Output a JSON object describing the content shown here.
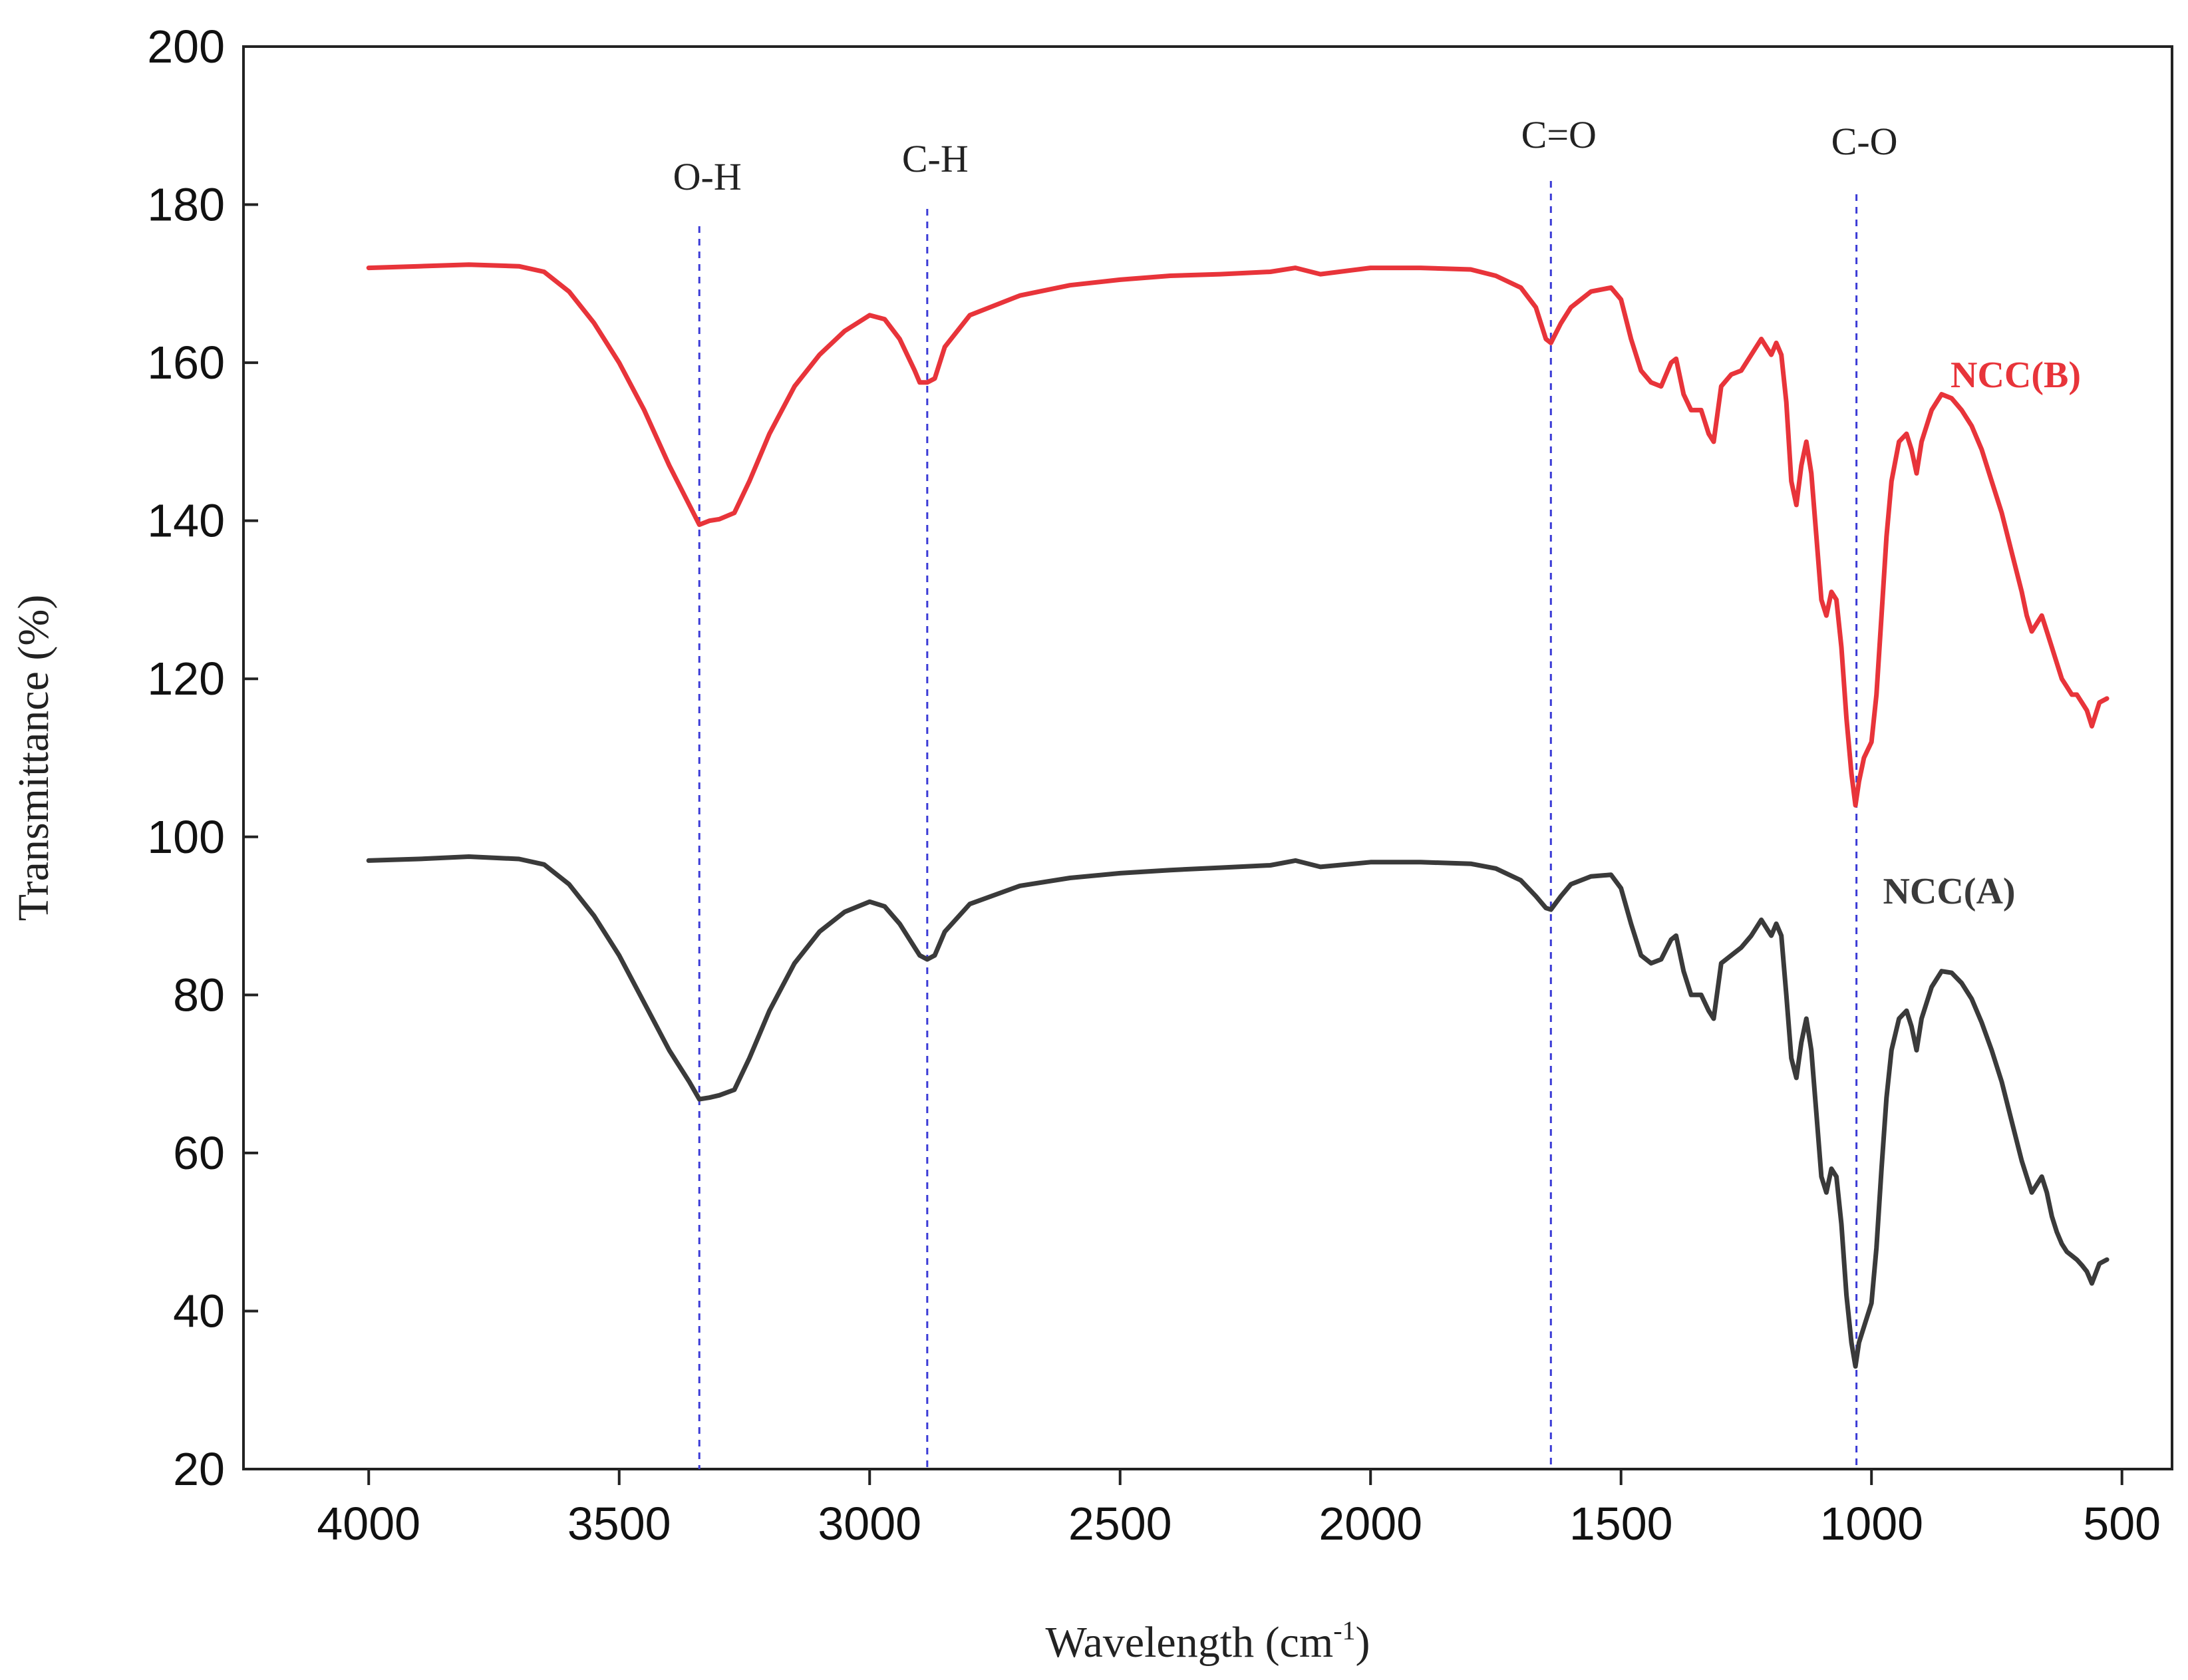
{
  "chart_data": {
    "type": "line",
    "title": "",
    "xlabel": "Wavelength (cm",
    "xlabel_sup": "-1",
    "xlabel_suffix": ")",
    "ylabel": "Transmittance (%)",
    "xlim": [
      4250,
      400
    ],
    "ylim": [
      20,
      200
    ],
    "x_reversed": true,
    "x_ticks": [
      4000,
      3500,
      3000,
      2500,
      2000,
      1500,
      1000,
      500
    ],
    "x_tick_labels": [
      "4000",
      "3500",
      "3000",
      "2500",
      "2000",
      "1500",
      "1000",
      "500"
    ],
    "y_ticks": [
      20,
      40,
      60,
      80,
      100,
      120,
      140,
      160,
      180,
      200
    ],
    "y_tick_labels": [
      "20",
      "40",
      "60",
      "80",
      "100",
      "120",
      "140",
      "160",
      "180",
      "200"
    ],
    "grid": false,
    "legend": "inline labels at right",
    "peak_markers": [
      {
        "label": "O-H",
        "x": 3340,
        "color": "#3b3bd6"
      },
      {
        "label": "C-H",
        "x": 2885,
        "color": "#3b3bd6"
      },
      {
        "label": "C=O",
        "x": 1640,
        "color": "#3b3bd6"
      },
      {
        "label": "C-O",
        "x": 1030,
        "color": "#3b3bd6"
      }
    ],
    "series": [
      {
        "name": "NCC(B)",
        "color": "#e8343a",
        "points": [
          [
            4000,
            172
          ],
          [
            3900,
            172.2
          ],
          [
            3800,
            172.4
          ],
          [
            3700,
            172.2
          ],
          [
            3650,
            171.5
          ],
          [
            3600,
            169
          ],
          [
            3550,
            165
          ],
          [
            3500,
            160
          ],
          [
            3450,
            154
          ],
          [
            3400,
            147
          ],
          [
            3360,
            142
          ],
          [
            3340,
            139.5
          ],
          [
            3320,
            140
          ],
          [
            3300,
            140.2
          ],
          [
            3270,
            141
          ],
          [
            3240,
            145
          ],
          [
            3200,
            151
          ],
          [
            3150,
            157
          ],
          [
            3100,
            161
          ],
          [
            3050,
            164
          ],
          [
            3000,
            166
          ],
          [
            2970,
            165.5
          ],
          [
            2940,
            163
          ],
          [
            2910,
            159
          ],
          [
            2900,
            157.5
          ],
          [
            2885,
            157.5
          ],
          [
            2870,
            158
          ],
          [
            2850,
            162
          ],
          [
            2800,
            166
          ],
          [
            2700,
            168.5
          ],
          [
            2600,
            169.8
          ],
          [
            2500,
            170.5
          ],
          [
            2400,
            171
          ],
          [
            2300,
            171.2
          ],
          [
            2200,
            171.5
          ],
          [
            2150,
            172
          ],
          [
            2100,
            171.2
          ],
          [
            2000,
            172
          ],
          [
            1900,
            172
          ],
          [
            1800,
            171.8
          ],
          [
            1750,
            171
          ],
          [
            1700,
            169.5
          ],
          [
            1670,
            167
          ],
          [
            1650,
            163
          ],
          [
            1640,
            162.5
          ],
          [
            1620,
            165
          ],
          [
            1600,
            167
          ],
          [
            1560,
            169
          ],
          [
            1520,
            169.5
          ],
          [
            1500,
            168
          ],
          [
            1480,
            163
          ],
          [
            1460,
            159
          ],
          [
            1440,
            157.5
          ],
          [
            1420,
            157
          ],
          [
            1400,
            160
          ],
          [
            1390,
            160.5
          ],
          [
            1375,
            156
          ],
          [
            1360,
            154
          ],
          [
            1340,
            154
          ],
          [
            1325,
            151
          ],
          [
            1315,
            150
          ],
          [
            1300,
            157
          ],
          [
            1280,
            158.5
          ],
          [
            1260,
            159
          ],
          [
            1240,
            161
          ],
          [
            1220,
            163
          ],
          [
            1210,
            162
          ],
          [
            1200,
            161
          ],
          [
            1190,
            162.5
          ],
          [
            1180,
            161
          ],
          [
            1170,
            155
          ],
          [
            1160,
            145
          ],
          [
            1150,
            142
          ],
          [
            1140,
            147
          ],
          [
            1130,
            150
          ],
          [
            1120,
            146
          ],
          [
            1110,
            138
          ],
          [
            1100,
            130
          ],
          [
            1090,
            128
          ],
          [
            1080,
            131
          ],
          [
            1070,
            130
          ],
          [
            1060,
            124
          ],
          [
            1050,
            115
          ],
          [
            1040,
            108
          ],
          [
            1032,
            104
          ],
          [
            1025,
            107
          ],
          [
            1015,
            110
          ],
          [
            1000,
            112
          ],
          [
            990,
            118
          ],
          [
            980,
            128
          ],
          [
            970,
            138
          ],
          [
            960,
            145
          ],
          [
            945,
            150
          ],
          [
            930,
            151
          ],
          [
            920,
            149
          ],
          [
            910,
            146
          ],
          [
            900,
            150
          ],
          [
            880,
            154
          ],
          [
            860,
            156
          ],
          [
            840,
            155.5
          ],
          [
            820,
            154
          ],
          [
            800,
            152
          ],
          [
            780,
            149
          ],
          [
            760,
            145
          ],
          [
            740,
            141
          ],
          [
            720,
            136
          ],
          [
            700,
            131
          ],
          [
            690,
            128
          ],
          [
            680,
            126
          ],
          [
            660,
            128
          ],
          [
            650,
            126
          ],
          [
            640,
            124
          ],
          [
            630,
            122
          ],
          [
            620,
            120
          ],
          [
            610,
            119
          ],
          [
            600,
            118
          ],
          [
            590,
            118
          ],
          [
            580,
            117
          ],
          [
            570,
            116
          ],
          [
            560,
            114
          ],
          [
            545,
            117
          ],
          [
            530,
            117.5
          ]
        ]
      },
      {
        "name": "NCC(A)",
        "color": "#3a3a3a",
        "points": [
          [
            4000,
            97
          ],
          [
            3900,
            97.2
          ],
          [
            3800,
            97.5
          ],
          [
            3700,
            97.2
          ],
          [
            3650,
            96.5
          ],
          [
            3600,
            94
          ],
          [
            3550,
            90
          ],
          [
            3500,
            85
          ],
          [
            3450,
            79
          ],
          [
            3400,
            73
          ],
          [
            3360,
            69
          ],
          [
            3340,
            66.8
          ],
          [
            3320,
            67
          ],
          [
            3300,
            67.3
          ],
          [
            3270,
            68
          ],
          [
            3240,
            72
          ],
          [
            3200,
            78
          ],
          [
            3150,
            84
          ],
          [
            3100,
            88
          ],
          [
            3050,
            90.5
          ],
          [
            3000,
            91.8
          ],
          [
            2970,
            91.2
          ],
          [
            2940,
            89
          ],
          [
            2910,
            86
          ],
          [
            2900,
            85
          ],
          [
            2885,
            84.5
          ],
          [
            2870,
            85
          ],
          [
            2850,
            88
          ],
          [
            2800,
            91.5
          ],
          [
            2700,
            93.8
          ],
          [
            2600,
            94.8
          ],
          [
            2500,
            95.4
          ],
          [
            2400,
            95.8
          ],
          [
            2300,
            96.1
          ],
          [
            2200,
            96.4
          ],
          [
            2150,
            97
          ],
          [
            2100,
            96.2
          ],
          [
            2000,
            96.8
          ],
          [
            1900,
            96.8
          ],
          [
            1800,
            96.6
          ],
          [
            1750,
            96
          ],
          [
            1700,
            94.5
          ],
          [
            1670,
            92.5
          ],
          [
            1650,
            91
          ],
          [
            1640,
            90.8
          ],
          [
            1620,
            92.5
          ],
          [
            1600,
            94
          ],
          [
            1560,
            95
          ],
          [
            1520,
            95.2
          ],
          [
            1500,
            93.5
          ],
          [
            1480,
            89
          ],
          [
            1460,
            85
          ],
          [
            1440,
            84
          ],
          [
            1420,
            84.5
          ],
          [
            1400,
            87
          ],
          [
            1390,
            87.5
          ],
          [
            1375,
            83
          ],
          [
            1360,
            80
          ],
          [
            1340,
            80
          ],
          [
            1325,
            78
          ],
          [
            1315,
            77
          ],
          [
            1300,
            84
          ],
          [
            1280,
            85
          ],
          [
            1260,
            86
          ],
          [
            1240,
            87.5
          ],
          [
            1220,
            89.5
          ],
          [
            1210,
            88.5
          ],
          [
            1200,
            87.5
          ],
          [
            1190,
            89
          ],
          [
            1180,
            87.5
          ],
          [
            1170,
            80
          ],
          [
            1160,
            72
          ],
          [
            1150,
            69.5
          ],
          [
            1140,
            74
          ],
          [
            1130,
            77
          ],
          [
            1120,
            73
          ],
          [
            1110,
            65
          ],
          [
            1100,
            57
          ],
          [
            1090,
            55
          ],
          [
            1080,
            58
          ],
          [
            1070,
            57
          ],
          [
            1060,
            51
          ],
          [
            1050,
            42
          ],
          [
            1040,
            36
          ],
          [
            1032,
            33
          ],
          [
            1025,
            36
          ],
          [
            1015,
            38
          ],
          [
            1000,
            41
          ],
          [
            990,
            48
          ],
          [
            980,
            58
          ],
          [
            970,
            67
          ],
          [
            960,
            73
          ],
          [
            945,
            77
          ],
          [
            930,
            78
          ],
          [
            920,
            76
          ],
          [
            910,
            73
          ],
          [
            900,
            77
          ],
          [
            880,
            81
          ],
          [
            860,
            83
          ],
          [
            840,
            82.8
          ],
          [
            820,
            81.5
          ],
          [
            800,
            79.5
          ],
          [
            780,
            76.5
          ],
          [
            760,
            73
          ],
          [
            740,
            69
          ],
          [
            720,
            64
          ],
          [
            700,
            59
          ],
          [
            690,
            57
          ],
          [
            680,
            55
          ],
          [
            660,
            57
          ],
          [
            650,
            55
          ],
          [
            640,
            52
          ],
          [
            630,
            50
          ],
          [
            620,
            48.5
          ],
          [
            610,
            47.5
          ],
          [
            600,
            47
          ],
          [
            590,
            46.5
          ],
          [
            580,
            45.8
          ],
          [
            570,
            45
          ],
          [
            560,
            43.5
          ],
          [
            545,
            46
          ],
          [
            530,
            46.5
          ]
        ]
      }
    ]
  }
}
